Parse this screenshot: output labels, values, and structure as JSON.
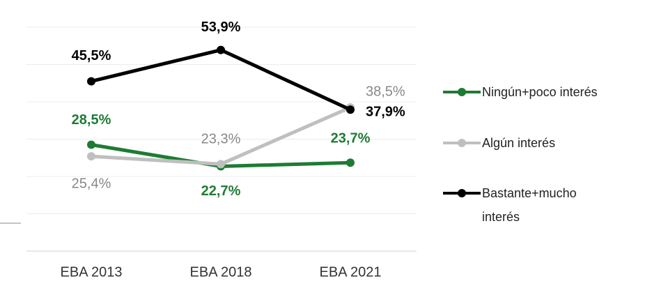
{
  "chart_data": {
    "type": "line",
    "categories": [
      "EBA 2013",
      "EBA 2018",
      "EBA 2021"
    ],
    "ylim": [
      0,
      60
    ],
    "yticks": [
      0,
      10,
      20,
      30,
      40,
      50,
      60
    ],
    "grid": true,
    "series": [
      {
        "name": "Ningún+poco interés",
        "color": "#1e7b34",
        "values": [
          28.5,
          22.7,
          23.7
        ],
        "value_labels": [
          "28,5%",
          "22,7%",
          "23,7%"
        ]
      },
      {
        "name": "Algún interés",
        "color": "#bfbfbf",
        "values": [
          25.4,
          23.3,
          38.5
        ],
        "value_labels": [
          "25,4%",
          "23,3%",
          "38,5%"
        ]
      },
      {
        "name": "Bastante+mucho interés",
        "color": "#000000",
        "values": [
          45.5,
          53.9,
          37.9
        ],
        "value_labels": [
          "45,5%",
          "53,9%",
          "37,9%"
        ]
      }
    ]
  }
}
